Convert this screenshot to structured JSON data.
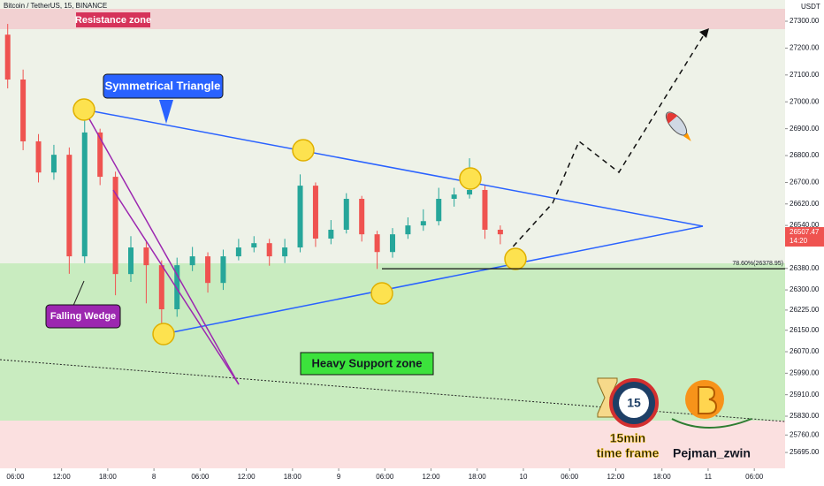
{
  "chart_data": {
    "type": "candlestick",
    "title": "Bitcoin / TetherUS, 15, BINANCE",
    "y_axis_label": "USDT",
    "x": [
      -1,
      1,
      3,
      5,
      7,
      9,
      11,
      13,
      15,
      17,
      19,
      21,
      23,
      25,
      27,
      29,
      31,
      33,
      35,
      37,
      39,
      41,
      43,
      45,
      47,
      49,
      51,
      53,
      55,
      57,
      59,
      61,
      63
    ],
    "open": [
      27250,
      27083,
      26853,
      26737,
      26803,
      26425,
      26886,
      26721,
      26359,
      26458,
      26392,
      26228,
      26392,
      26425,
      26326,
      26425,
      26458,
      26474,
      26425,
      26458,
      26688,
      26491,
      26524,
      26639,
      26507,
      26441,
      26507,
      26540,
      26556,
      26639,
      26655,
      26672,
      26524
    ],
    "high": [
      27290,
      27120,
      26880,
      26840,
      26830,
      26930,
      26900,
      26740,
      26500,
      26480,
      26410,
      26420,
      26460,
      26440,
      26450,
      26490,
      26500,
      26490,
      26490,
      26730,
      26700,
      26560,
      26660,
      26650,
      26520,
      26530,
      26570,
      26600,
      26680,
      26680,
      26790,
      26690,
      26540
    ],
    "low": [
      27050,
      26820,
      26700,
      26710,
      26360,
      26400,
      26690,
      26280,
      26330,
      26250,
      26140,
      26200,
      26370,
      26290,
      26300,
      26410,
      26440,
      26390,
      26400,
      26440,
      26460,
      26470,
      26510,
      26480,
      26378,
      26420,
      26490,
      26520,
      26540,
      26610,
      26640,
      26490,
      26470
    ],
    "close": [
      27083,
      26853,
      26737,
      26803,
      26425,
      26886,
      26721,
      26359,
      26458,
      26392,
      26228,
      26392,
      26425,
      26326,
      26425,
      26458,
      26474,
      26425,
      26458,
      26688,
      26491,
      26524,
      26639,
      26507,
      26441,
      26507,
      26540,
      26556,
      26639,
      26655,
      26672,
      26524,
      26507
    ],
    "up_color": "#26a69a",
    "down_color": "#ef5350",
    "xlim": [
      -2,
      100
    ],
    "xticks": [
      {
        "value": 0,
        "label": "06:00"
      },
      {
        "value": 6,
        "label": "12:00"
      },
      {
        "value": 12,
        "label": "18:00"
      },
      {
        "value": 18,
        "label": "8"
      },
      {
        "value": 24,
        "label": "06:00"
      },
      {
        "value": 30,
        "label": "12:00"
      },
      {
        "value": 36,
        "label": "18:00"
      },
      {
        "value": 42,
        "label": "9"
      },
      {
        "value": 48,
        "label": "06:00"
      },
      {
        "value": 54,
        "label": "12:00"
      },
      {
        "value": 60,
        "label": "18:00"
      },
      {
        "value": 66,
        "label": "10"
      },
      {
        "value": 72,
        "label": "06:00"
      },
      {
        "value": 78,
        "label": "12:00"
      },
      {
        "value": 84,
        "label": "18:00"
      },
      {
        "value": 90,
        "label": "11"
      },
      {
        "value": 96,
        "label": "06:00"
      }
    ],
    "ylim": [
      25636,
      27379
    ],
    "yticks": [
      {
        "value": 27300,
        "label": "27300.00"
      },
      {
        "value": 27200,
        "label": "27200.00"
      },
      {
        "value": 27100,
        "label": "27100.00"
      },
      {
        "value": 27000,
        "label": "27000.00"
      },
      {
        "value": 26900,
        "label": "26900.00"
      },
      {
        "value": 26800,
        "label": "26800.00"
      },
      {
        "value": 26700,
        "label": "26700.00"
      },
      {
        "value": 26620,
        "label": "26620.00"
      },
      {
        "value": 26540,
        "label": "26540.00"
      },
      {
        "value": 26380,
        "label": "26380.00"
      },
      {
        "value": 26300,
        "label": "26300.00"
      },
      {
        "value": 26225,
        "label": "26225.00"
      },
      {
        "value": 26150,
        "label": "26150.00"
      },
      {
        "value": 26070,
        "label": "26070.00"
      },
      {
        "value": 25990,
        "label": "25990.00"
      },
      {
        "value": 25910,
        "label": "25910.00"
      },
      {
        "value": 25830,
        "label": "25830.00"
      },
      {
        "value": 25760,
        "label": "25760.00"
      },
      {
        "value": 25695,
        "label": "25695.00"
      }
    ],
    "last_price": {
      "value": 26507.47,
      "label": "26507.47"
    },
    "countdown": "14:20",
    "fib_level": {
      "value": 26378.95,
      "label": "78.60%(26378.95)"
    },
    "annotations": {
      "resistance": "Resistance zone",
      "triangle": "Symmetrical Triangle",
      "wedge": "Falling Wedge",
      "support": "Heavy Support zone",
      "clock": "15",
      "timeframe_1": "15min",
      "timeframe_2": "time frame",
      "author": "Pejman_zwin"
    }
  }
}
